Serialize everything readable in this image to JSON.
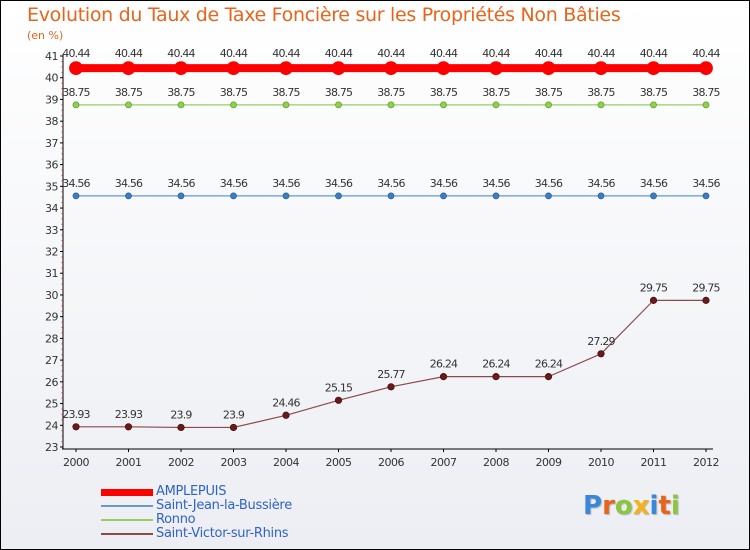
{
  "chart_data": {
    "type": "line",
    "title": "Evolution du Taux de Taxe Foncière sur les Propriétés Non Bâties",
    "subtitle": "(en %)",
    "xlabel": "",
    "ylabel": "",
    "x": [
      "2000",
      "2001",
      "2002",
      "2003",
      "2004",
      "2005",
      "2006",
      "2007",
      "2008",
      "2009",
      "2010",
      "2011",
      "2012"
    ],
    "yticks": [
      "23",
      "24",
      "25",
      "26",
      "27",
      "28",
      "29",
      "30",
      "31",
      "32",
      "33",
      "34",
      "35",
      "36",
      "37",
      "38",
      "39",
      "40",
      "41"
    ],
    "ylim": [
      23,
      41
    ],
    "grid": false,
    "legend_position": "bottom-left",
    "series": [
      {
        "name": "AMPLEPUIS",
        "color": "#ff0000",
        "values": [
          40.44,
          40.44,
          40.44,
          40.44,
          40.44,
          40.44,
          40.44,
          40.44,
          40.44,
          40.44,
          40.44,
          40.44,
          40.44
        ],
        "labels": [
          "40.44",
          "40.44",
          "40.44",
          "40.44",
          "40.44",
          "40.44",
          "40.44",
          "40.44",
          "40.44",
          "40.44",
          "40.44",
          "40.44",
          "40.44"
        ]
      },
      {
        "name": "Saint-Jean-la-Bussière",
        "color": "#6699cc",
        "values": [
          34.56,
          34.56,
          34.56,
          34.56,
          34.56,
          34.56,
          34.56,
          34.56,
          34.56,
          34.56,
          34.56,
          34.56,
          34.56
        ],
        "labels": [
          "34.56",
          "34.56",
          "34.56",
          "34.56",
          "34.56",
          "34.56",
          "34.56",
          "34.56",
          "34.56",
          "34.56",
          "34.56",
          "34.56",
          "34.56"
        ]
      },
      {
        "name": "Ronno",
        "color": "#99cc66",
        "values": [
          38.75,
          38.75,
          38.75,
          38.75,
          38.75,
          38.75,
          38.75,
          38.75,
          38.75,
          38.75,
          38.75,
          38.75,
          38.75
        ],
        "labels": [
          "38.75",
          "38.75",
          "38.75",
          "38.75",
          "38.75",
          "38.75",
          "38.75",
          "38.75",
          "38.75",
          "38.75",
          "38.75",
          "38.75",
          "38.75"
        ]
      },
      {
        "name": "Saint-Victor-sur-Rhins",
        "color": "#8b4a4a",
        "values": [
          23.93,
          23.93,
          23.9,
          23.9,
          24.46,
          25.15,
          25.77,
          26.24,
          26.24,
          26.24,
          27.29,
          29.75,
          29.75
        ],
        "labels": [
          "23.93",
          "23.93",
          "23.9",
          "23.9",
          "24.46",
          "25.15",
          "25.77",
          "26.24",
          "26.24",
          "26.24",
          "27.29",
          "29.75",
          "29.75"
        ]
      }
    ]
  },
  "logo": {
    "text": "Proxiti",
    "letters": [
      "P",
      "r",
      "o",
      "x",
      "i",
      "t",
      "i"
    ]
  }
}
